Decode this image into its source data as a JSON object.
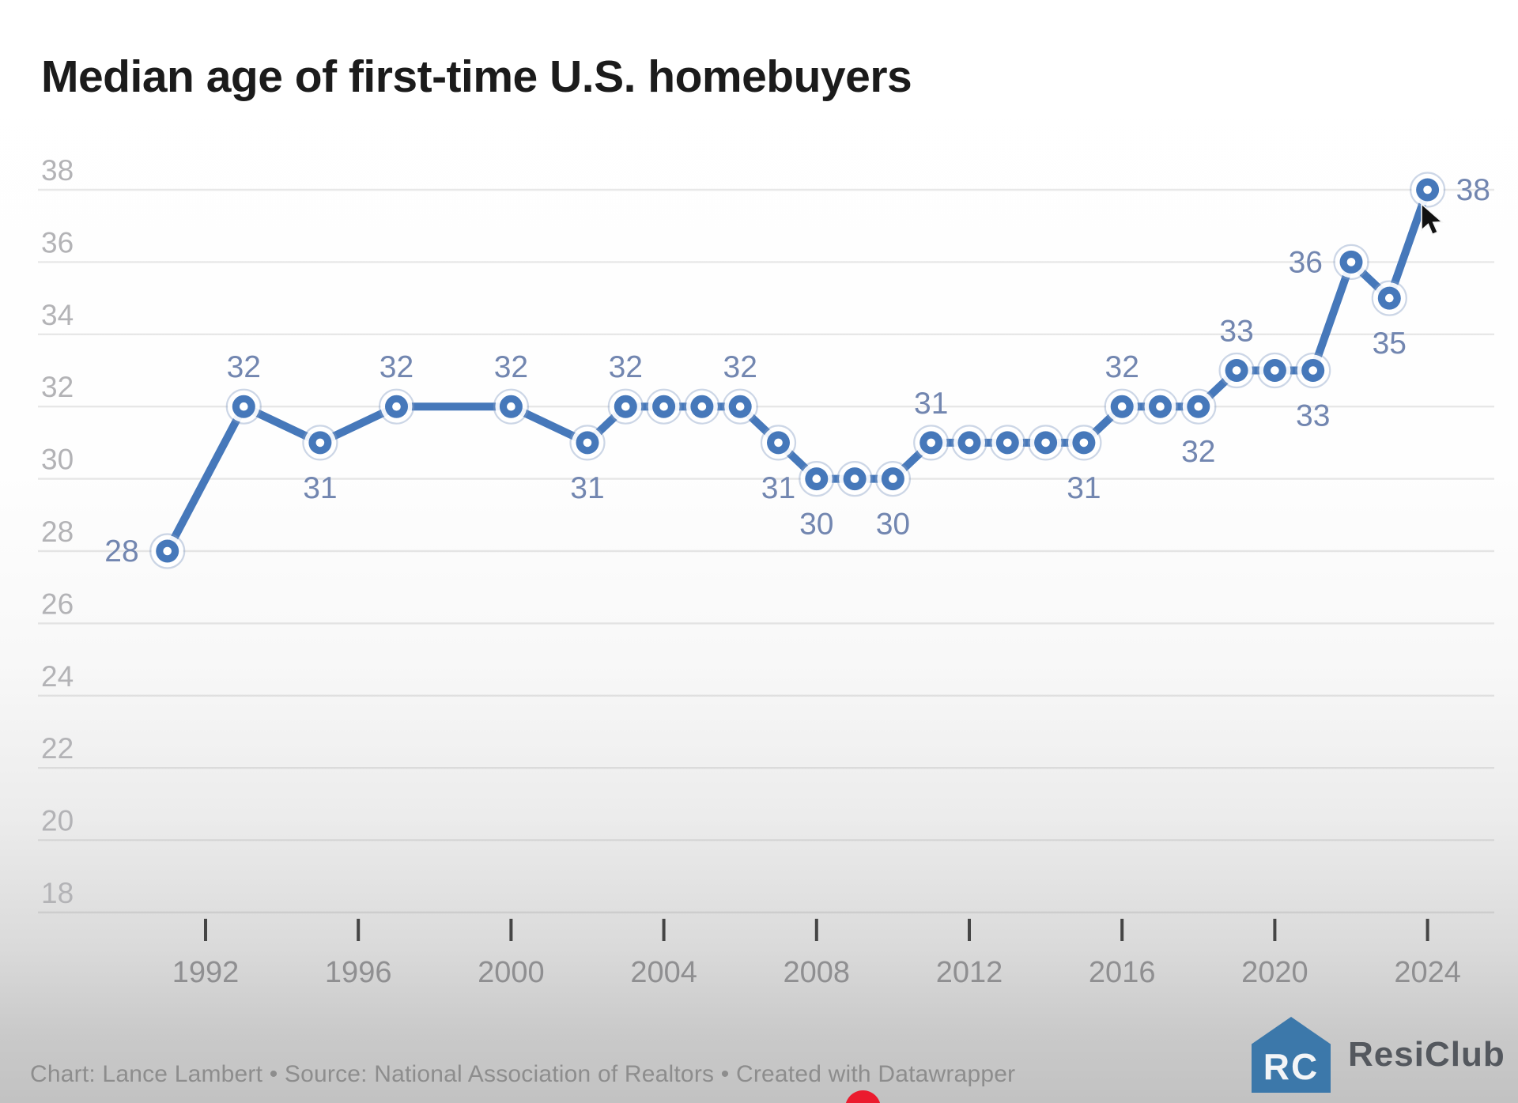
{
  "title": "Median age of first-time U.S. homebuyers",
  "footer": {
    "credit": "Chart: Lance Lambert • Source: National Association of Realtors • Created with Datawrapper"
  },
  "logo": {
    "monogram": "RC",
    "text": "ResiClub",
    "icon_color": "#3c78aa",
    "text_color": "#54585e"
  },
  "colors": {
    "line": "#4678ba",
    "marker": "#4678ba",
    "marker_hole": "#ffffff",
    "halo_ring": "rgba(130,155,195,0.40)",
    "data_label": "#7286b0",
    "gridline": "rgba(110,110,110,0.16)",
    "y_tick_label": "#b3b3b6",
    "x_tick_label": "#8f8f91",
    "tick_mark": "#454545",
    "scrubber_dot": "#eb1b2e"
  },
  "chart_data": {
    "type": "line",
    "title": "Median age of first-time U.S. homebuyers",
    "xlabel": "",
    "ylabel": "",
    "grid": true,
    "legend": "none",
    "ylim": [
      18,
      38
    ],
    "xlim": [
      1991,
      2024
    ],
    "y_ticks": [
      38,
      36,
      34,
      32,
      30,
      28,
      26,
      24,
      22,
      20,
      18
    ],
    "x_ticks": [
      1992,
      1996,
      2000,
      2004,
      2008,
      2012,
      2016,
      2020,
      2024
    ],
    "series_name": "Median age of first-time U.S. homebuyers",
    "points": [
      {
        "year": 1991,
        "value": 28,
        "label": "28",
        "label_pos": "left"
      },
      {
        "year": 1993,
        "value": 32,
        "label": "32",
        "label_pos": "above"
      },
      {
        "year": 1995,
        "value": 31,
        "label": "31",
        "label_pos": "below"
      },
      {
        "year": 1997,
        "value": 32,
        "label": "32",
        "label_pos": "above"
      },
      {
        "year": 2000,
        "value": 32,
        "label": "32",
        "label_pos": "above"
      },
      {
        "year": 2002,
        "value": 31,
        "label": "31",
        "label_pos": "below"
      },
      {
        "year": 2003,
        "value": 32,
        "label": "32",
        "label_pos": "above"
      },
      {
        "year": 2004,
        "value": 32,
        "label": "",
        "label_pos": "none"
      },
      {
        "year": 2005,
        "value": 32,
        "label": "",
        "label_pos": "none"
      },
      {
        "year": 2006,
        "value": 32,
        "label": "32",
        "label_pos": "above"
      },
      {
        "year": 2007,
        "value": 31,
        "label": "31",
        "label_pos": "below"
      },
      {
        "year": 2008,
        "value": 30,
        "label": "30",
        "label_pos": "below"
      },
      {
        "year": 2009,
        "value": 30,
        "label": "",
        "label_pos": "none"
      },
      {
        "year": 2010,
        "value": 30,
        "label": "30",
        "label_pos": "below"
      },
      {
        "year": 2011,
        "value": 31,
        "label": "31",
        "label_pos": "above"
      },
      {
        "year": 2012,
        "value": 31,
        "label": "",
        "label_pos": "none"
      },
      {
        "year": 2013,
        "value": 31,
        "label": "",
        "label_pos": "none"
      },
      {
        "year": 2014,
        "value": 31,
        "label": "",
        "label_pos": "none"
      },
      {
        "year": 2015,
        "value": 31,
        "label": "31",
        "label_pos": "below"
      },
      {
        "year": 2016,
        "value": 32,
        "label": "32",
        "label_pos": "above"
      },
      {
        "year": 2017,
        "value": 32,
        "label": "",
        "label_pos": "none"
      },
      {
        "year": 2018,
        "value": 32,
        "label": "32",
        "label_pos": "below"
      },
      {
        "year": 2019,
        "value": 33,
        "label": "33",
        "label_pos": "above"
      },
      {
        "year": 2020,
        "value": 33,
        "label": "",
        "label_pos": "none"
      },
      {
        "year": 2021,
        "value": 33,
        "label": "33",
        "label_pos": "below"
      },
      {
        "year": 2022,
        "value": 36,
        "label": "36",
        "label_pos": "left"
      },
      {
        "year": 2023,
        "value": 35,
        "label": "35",
        "label_pos": "below"
      },
      {
        "year": 2024,
        "value": 38,
        "label": "38",
        "label_pos": "right"
      }
    ]
  }
}
